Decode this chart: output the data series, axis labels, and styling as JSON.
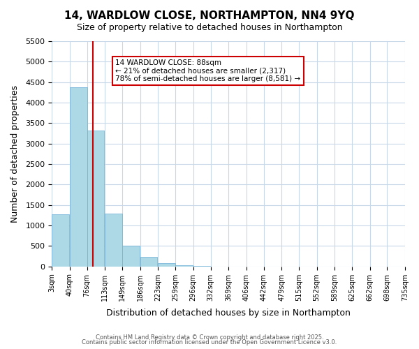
{
  "title": "14, WARDLOW CLOSE, NORTHAMPTON, NN4 9YQ",
  "subtitle": "Size of property relative to detached houses in Northampton",
  "xlabel": "Distribution of detached houses by size in Northampton",
  "ylabel": "Number of detached properties",
  "bar_values": [
    1270,
    4380,
    3310,
    1290,
    500,
    225,
    80,
    30,
    5,
    0,
    0,
    0,
    0,
    0,
    0,
    0,
    0,
    0,
    0,
    0
  ],
  "bin_labels": [
    "3sqm",
    "40sqm",
    "76sqm",
    "113sqm",
    "149sqm",
    "186sqm",
    "223sqm",
    "259sqm",
    "296sqm",
    "332sqm",
    "369sqm",
    "406sqm",
    "442sqm",
    "479sqm",
    "515sqm",
    "552sqm",
    "589sqm",
    "625sqm",
    "662sqm",
    "698sqm",
    "735sqm"
  ],
  "bar_color": "#add8e6",
  "bar_edge_color": "#6baed6",
  "property_line_x": 88,
  "property_line_label": "14 WARDLOW CLOSE: 88sqm",
  "annotation_line1": "← 21% of detached houses are smaller (2,317)",
  "annotation_line2": "78% of semi-detached houses are larger (8,581) →",
  "annotation_box_color": "#ffffff",
  "annotation_box_edge_color": "#cc0000",
  "line_color": "#cc0000",
  "ylim": [
    0,
    5500
  ],
  "yticks": [
    0,
    500,
    1000,
    1500,
    2000,
    2500,
    3000,
    3500,
    4000,
    4500,
    5000,
    5500
  ],
  "footer1": "Contains HM Land Registry data © Crown copyright and database right 2025.",
  "footer2": "Contains public sector information licensed under the Open Government Licence v3.0.",
  "background_color": "#ffffff",
  "grid_color": "#c8d8e8"
}
